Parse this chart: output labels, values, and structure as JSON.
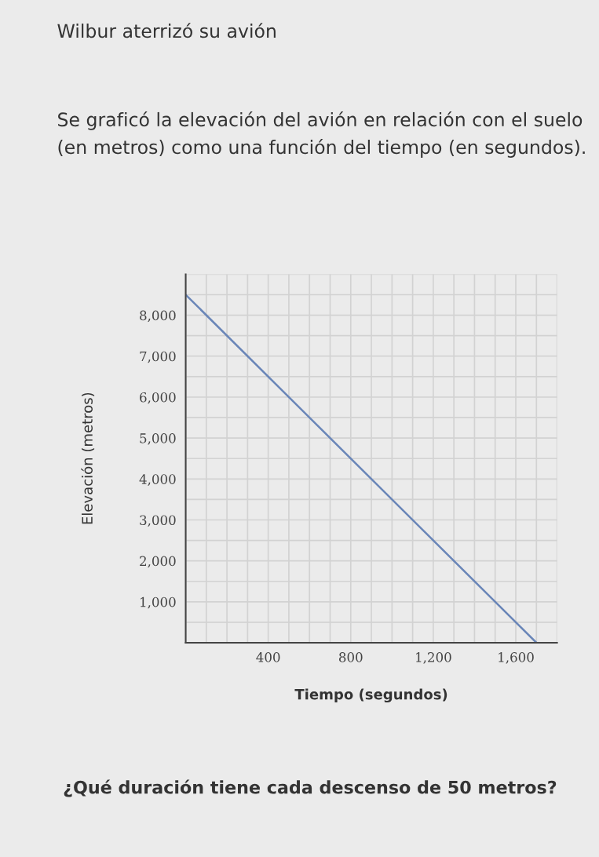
{
  "chart_data": {
    "type": "line",
    "title": "Wilbur aterrizó su avión",
    "subtitle": "Se graficó la elevación del avión en relación con el suelo (en metros) como una función del tiempo (en segundos).",
    "xlabel": "Tiempo (segundos)",
    "ylabel": "Elevación (metros)",
    "x": [
      0,
      1700
    ],
    "series": [
      {
        "color": "#6a86b8",
        "values": [
          8500,
          0
        ]
      }
    ],
    "xlim": [
      0,
      1800
    ],
    "ylim": [
      0,
      9000
    ],
    "xticks": [
      {
        "value": 400,
        "label": "400"
      },
      {
        "value": 800,
        "label": "800"
      },
      {
        "value": 1200,
        "label": "1,200"
      },
      {
        "value": 1600,
        "label": "1,600"
      }
    ],
    "yticks": [
      {
        "value": 1000,
        "label": "1,000"
      },
      {
        "value": 2000,
        "label": "2,000"
      },
      {
        "value": 3000,
        "label": "3,000"
      },
      {
        "value": 4000,
        "label": "4,000"
      },
      {
        "value": 5000,
        "label": "5,000"
      },
      {
        "value": 6000,
        "label": "6,000"
      },
      {
        "value": 7000,
        "label": "7,000"
      },
      {
        "value": 8000,
        "label": "8,000"
      }
    ],
    "grid": true,
    "marker": "none",
    "line_style": "solid",
    "annotations": [
      "¿Qué duración tiene cada descenso de 50 metros?"
    ]
  }
}
